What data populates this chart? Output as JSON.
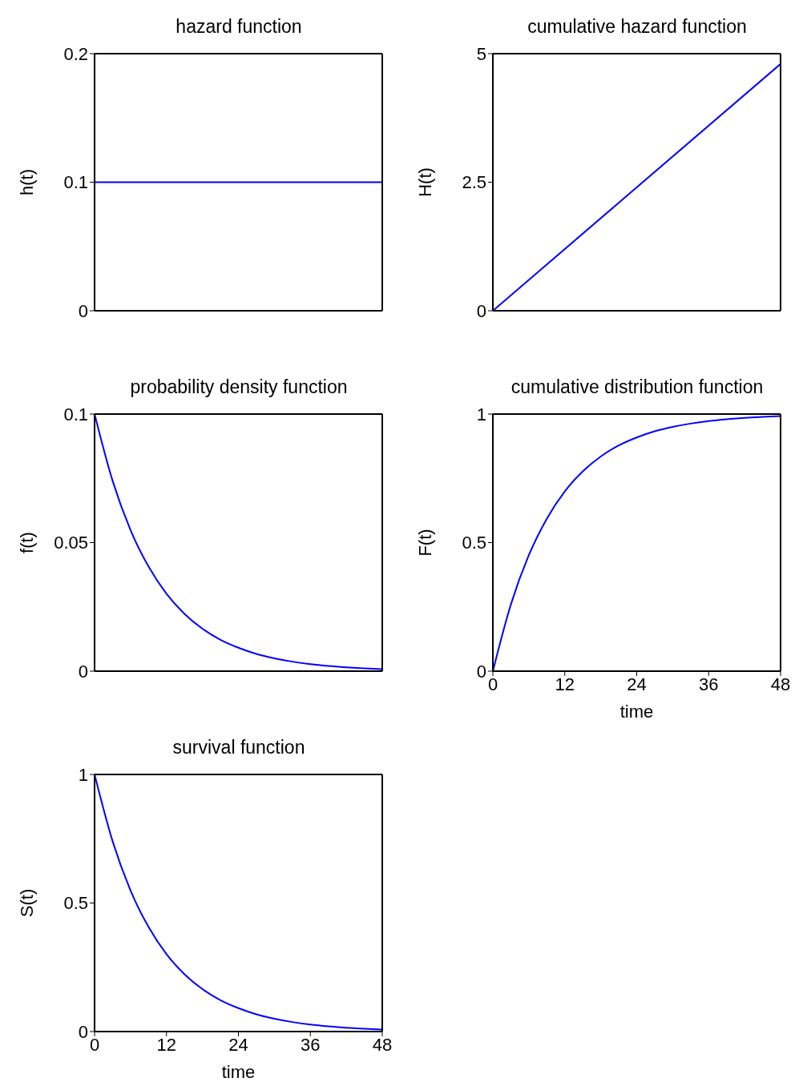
{
  "chart_data": [
    {
      "type": "line",
      "title": "hazard function",
      "ylabel": "h(t)",
      "x": [
        0,
        48
      ],
      "series": [
        {
          "color": "#0000ff",
          "values": [
            0.1,
            0.1
          ]
        }
      ],
      "xlim": [
        0,
        48
      ],
      "xticks": [
        0,
        12,
        24,
        36,
        48
      ],
      "ylim": [
        0,
        0.2
      ],
      "yticks": [
        0,
        0.1,
        0.2
      ],
      "tick_labels": "y",
      "grid": false,
      "legend": false
    },
    {
      "type": "line",
      "title": "cumulative hazard function",
      "ylabel": "H(t)",
      "x": [
        0,
        48
      ],
      "series": [
        {
          "color": "#0000ff",
          "values": [
            0,
            4.8
          ]
        }
      ],
      "xlim": [
        0,
        48
      ],
      "xticks": [
        0,
        12,
        24,
        36,
        48
      ],
      "ylim": [
        0,
        5
      ],
      "yticks": [
        0,
        2.5,
        5
      ],
      "tick_labels": "y",
      "grid": false,
      "legend": false
    },
    {
      "type": "line",
      "title": "probability density function",
      "ylabel": "f(t)",
      "x": [
        0,
        3,
        6,
        9,
        12,
        15,
        18,
        21,
        24,
        27,
        30,
        33,
        36,
        39,
        42,
        45,
        48
      ],
      "series": [
        {
          "color": "#0000ff",
          "values": [
            0.1,
            0.0741,
            0.0549,
            0.0407,
            0.0301,
            0.0223,
            0.0165,
            0.0122,
            0.0091,
            0.0067,
            0.005,
            0.0037,
            0.0027,
            0.002,
            0.0015,
            0.0011,
            0.0008
          ]
        }
      ],
      "xlim": [
        0,
        48
      ],
      "xticks": [
        0,
        12,
        24,
        36,
        48
      ],
      "ylim": [
        0,
        0.1
      ],
      "yticks": [
        0,
        0.05,
        0.1
      ],
      "tick_labels": "y",
      "grid": false,
      "legend": false
    },
    {
      "type": "line",
      "title": "cumulative distribution function",
      "xlabel": "time",
      "ylabel": "F(t)",
      "x": [
        0,
        3,
        6,
        9,
        12,
        15,
        18,
        21,
        24,
        27,
        30,
        33,
        36,
        39,
        42,
        45,
        48
      ],
      "series": [
        {
          "color": "#0000ff",
          "values": [
            0,
            0.259,
            0.451,
            0.593,
            0.699,
            0.777,
            0.835,
            0.878,
            0.909,
            0.933,
            0.95,
            0.963,
            0.973,
            0.98,
            0.985,
            0.989,
            0.992
          ]
        }
      ],
      "xlim": [
        0,
        48
      ],
      "xticks": [
        0,
        12,
        24,
        36,
        48
      ],
      "ylim": [
        0,
        1
      ],
      "yticks": [
        0,
        0.5,
        1
      ],
      "grid": false,
      "legend": false
    },
    {
      "type": "line",
      "title": "survival function",
      "xlabel": "time",
      "ylabel": "S(t)",
      "x": [
        0,
        3,
        6,
        9,
        12,
        15,
        18,
        21,
        24,
        27,
        30,
        33,
        36,
        39,
        42,
        45,
        48
      ],
      "series": [
        {
          "color": "#0000ff",
          "values": [
            1,
            0.741,
            0.549,
            0.407,
            0.301,
            0.223,
            0.165,
            0.122,
            0.091,
            0.067,
            0.05,
            0.037,
            0.027,
            0.02,
            0.015,
            0.011,
            0.008
          ]
        }
      ],
      "xlim": [
        0,
        48
      ],
      "xticks": [
        0,
        12,
        24,
        36,
        48
      ],
      "ylim": [
        0,
        1
      ],
      "yticks": [
        0,
        0.5,
        1
      ],
      "grid": false,
      "legend": false
    }
  ]
}
